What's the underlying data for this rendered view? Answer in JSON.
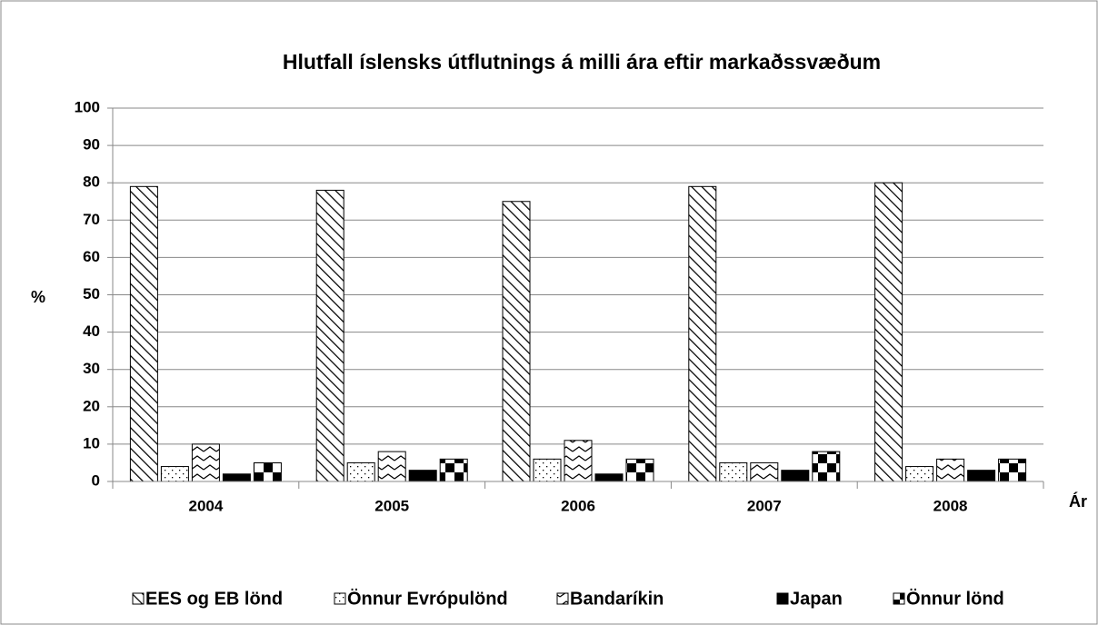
{
  "chart_data": {
    "type": "bar",
    "title": "Hlutfall íslensks útflutnings á milli ára  eftir markaðssvæðum",
    "ylabel": "%",
    "xlabel": "Ár",
    "categories": [
      "2004",
      "2005",
      "2006",
      "2007",
      "2008"
    ],
    "series": [
      {
        "name": "EES og EB lönd",
        "color": "#000000",
        "pattern": "hatch",
        "values": [
          79,
          78,
          75,
          79,
          80
        ]
      },
      {
        "name": "Önnur Evrópulönd",
        "color": "#000000",
        "pattern": "dots",
        "values": [
          4,
          5,
          6,
          5,
          4
        ]
      },
      {
        "name": "Bandaríkin",
        "color": "#000000",
        "pattern": "wave",
        "values": [
          10,
          8,
          11,
          5,
          6
        ]
      },
      {
        "name": "Japan",
        "color": "#000000",
        "pattern": "solid",
        "values": [
          2,
          3,
          2,
          3,
          3
        ]
      },
      {
        "name": "Önnur lönd",
        "color": "#000000",
        "pattern": "checker",
        "values": [
          5,
          6,
          6,
          8,
          6
        ]
      }
    ],
    "ylim": [
      0,
      100
    ],
    "yticks": [
      0,
      10,
      20,
      30,
      40,
      50,
      60,
      70,
      80,
      90,
      100
    ],
    "grid": true,
    "legend": "bottom"
  }
}
